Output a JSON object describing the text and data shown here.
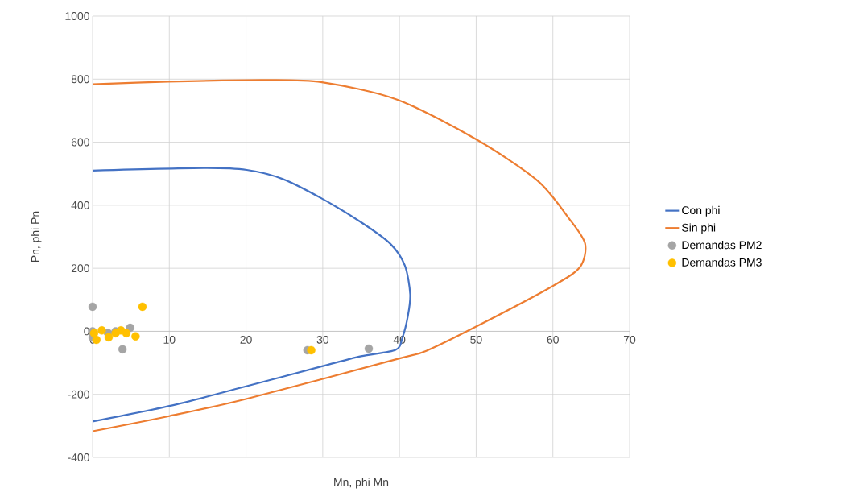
{
  "chart_data": {
    "type": "line",
    "xlabel": "Mn, phi Mn",
    "ylabel": "Pn, phi Pn",
    "xlim": [
      0,
      70
    ],
    "xticks": [
      0,
      10,
      20,
      30,
      40,
      50,
      60,
      70
    ],
    "ylim": [
      -400,
      1000
    ],
    "yticks": [
      -400,
      -200,
      0,
      200,
      400,
      600,
      800,
      1000
    ],
    "grid": true,
    "legend": "right",
    "marker": "circle",
    "series": [
      {
        "name": "Con phi",
        "marker": "none",
        "color": "#4472c4",
        "x": [
          0,
          14.5,
          20.1,
          24.8,
          29.9,
          35,
          38.8,
          40.7,
          41.4,
          41.1,
          40.4,
          39.5,
          35,
          29.9,
          20.1,
          10,
          0
        ],
        "values": [
          510,
          518,
          512,
          483,
          421,
          346,
          278,
          209,
          118,
          49,
          -19,
          -59,
          -79,
          -111,
          -174,
          -237,
          -286
        ]
      },
      {
        "name": "Sin phi",
        "marker": "none",
        "color": "#ed7d31",
        "x": [
          0,
          9.8,
          22.4,
          29.9,
          39.7,
          50,
          58,
          62.1,
          64.2,
          63.5,
          59.8,
          50,
          43.5,
          39.7,
          20.1,
          10,
          0
        ],
        "values": [
          784,
          792,
          797,
          790,
          735,
          609,
          478,
          358,
          278,
          203,
          141,
          15,
          -62,
          -88,
          -214,
          -269,
          -317
        ]
      },
      {
        "name": "Demandas PM2",
        "type": "scatter",
        "color": "#a5a5a5",
        "x": [
          0,
          0,
          0,
          2,
          3,
          3.9,
          4.9,
          28,
          36
        ],
        "values": [
          78,
          0,
          -19,
          -5,
          0,
          -57,
          11,
          -60,
          -55
        ]
      },
      {
        "name": "Demandas PM3",
        "type": "scatter",
        "color": "#ffc000",
        "x": [
          6.5,
          0.2,
          0.5,
          1.2,
          2.1,
          3,
          3.7,
          4.4,
          5.6,
          28.5
        ],
        "values": [
          78,
          -6,
          -27,
          3,
          -19,
          -6,
          3,
          -6,
          -16,
          -60
        ]
      }
    ]
  }
}
